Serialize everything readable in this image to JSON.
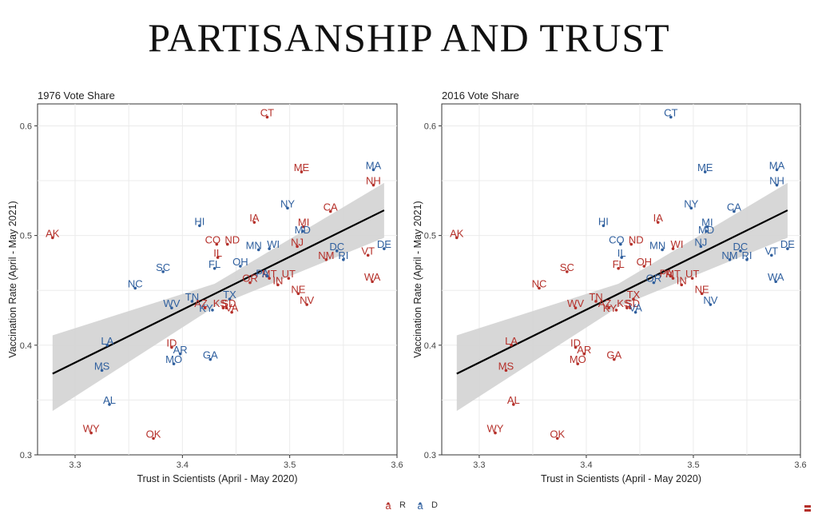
{
  "title": "PARTISANSHIP AND TRUST",
  "colors": {
    "R": "#b5302a",
    "D": "#2f5f9e",
    "ribbon": "#d3d3d3",
    "line": "#000000",
    "grid": "#ebebeb"
  },
  "legend": {
    "glyph": "a",
    "items": [
      {
        "party": "R",
        "label": "R"
      },
      {
        "party": "D",
        "label": "D"
      }
    ]
  },
  "states": [
    {
      "abbr": "CT",
      "trust": 3.479,
      "vax": 0.608,
      "p1976": "R",
      "p2016": "D"
    },
    {
      "abbr": "ME",
      "trust": 3.511,
      "vax": 0.558,
      "p1976": "R",
      "p2016": "D"
    },
    {
      "abbr": "MA",
      "trust": 3.578,
      "vax": 0.56,
      "p1976": "D",
      "p2016": "D"
    },
    {
      "abbr": "NH",
      "trust": 3.578,
      "vax": 0.546,
      "p1976": "R",
      "p2016": "D"
    },
    {
      "abbr": "NY",
      "trust": 3.498,
      "vax": 0.525,
      "p1976": "D",
      "p2016": "D"
    },
    {
      "abbr": "CA",
      "trust": 3.538,
      "vax": 0.522,
      "p1976": "R",
      "p2016": "D"
    },
    {
      "abbr": "HI",
      "trust": 3.416,
      "vax": 0.509,
      "p1976": "D",
      "p2016": "D"
    },
    {
      "abbr": "IA",
      "trust": 3.467,
      "vax": 0.512,
      "p1976": "R",
      "p2016": "R"
    },
    {
      "abbr": "MI",
      "trust": 3.513,
      "vax": 0.508,
      "p1976": "R",
      "p2016": "D"
    },
    {
      "abbr": "MD",
      "trust": 3.512,
      "vax": 0.504,
      "p1976": "D",
      "p2016": "D"
    },
    {
      "abbr": "AK",
      "trust": 3.279,
      "vax": 0.498,
      "p1976": "R",
      "p2016": "R"
    },
    {
      "abbr": "CO",
      "trust": 3.432,
      "vax": 0.492,
      "p1976": "R",
      "p2016": "D"
    },
    {
      "abbr": "ND",
      "trust": 3.442,
      "vax": 0.492,
      "p1976": "R",
      "p2016": "R"
    },
    {
      "abbr": "MN",
      "trust": 3.471,
      "vax": 0.487,
      "p1976": "D",
      "p2016": "D"
    },
    {
      "abbr": "WI",
      "trust": 3.481,
      "vax": 0.488,
      "p1976": "D",
      "p2016": "R"
    },
    {
      "abbr": "NJ",
      "trust": 3.507,
      "vax": 0.49,
      "p1976": "R",
      "p2016": "D"
    },
    {
      "abbr": "DC",
      "trust": 3.544,
      "vax": 0.486,
      "p1976": "D",
      "p2016": "D"
    },
    {
      "abbr": "DE",
      "trust": 3.588,
      "vax": 0.488,
      "p1976": "D",
      "p2016": "D"
    },
    {
      "abbr": "IL",
      "trust": 3.433,
      "vax": 0.48,
      "p1976": "R",
      "p2016": "D"
    },
    {
      "abbr": "VT",
      "trust": 3.573,
      "vax": 0.482,
      "p1976": "R",
      "p2016": "D"
    },
    {
      "abbr": "NM",
      "trust": 3.534,
      "vax": 0.478,
      "p1976": "R",
      "p2016": "D"
    },
    {
      "abbr": "RI",
      "trust": 3.55,
      "vax": 0.478,
      "p1976": "D",
      "p2016": "D"
    },
    {
      "abbr": "FL",
      "trust": 3.43,
      "vax": 0.47,
      "p1976": "D",
      "p2016": "R"
    },
    {
      "abbr": "SC",
      "trust": 3.382,
      "vax": 0.467,
      "p1976": "D",
      "p2016": "R"
    },
    {
      "abbr": "OH",
      "trust": 3.454,
      "vax": 0.472,
      "p1976": "D",
      "p2016": "R"
    },
    {
      "abbr": "MT",
      "trust": 3.481,
      "vax": 0.461,
      "p1976": "R",
      "p2016": "R"
    },
    {
      "abbr": "UT",
      "trust": 3.499,
      "vax": 0.461,
      "p1976": "R",
      "p2016": "R"
    },
    {
      "abbr": "PA",
      "trust": 3.479,
      "vax": 0.463,
      "p1976": "D",
      "p2016": "R"
    },
    {
      "abbr": "OR",
      "trust": 3.463,
      "vax": 0.457,
      "p1976": "R",
      "p2016": "D"
    },
    {
      "abbr": "IN",
      "trust": 3.489,
      "vax": 0.455,
      "p1976": "R",
      "p2016": "R"
    },
    {
      "abbr": "WA",
      "trust": 3.577,
      "vax": 0.458,
      "p1976": "R",
      "p2016": "D"
    },
    {
      "abbr": "NC",
      "trust": 3.356,
      "vax": 0.452,
      "p1976": "D",
      "p2016": "R"
    },
    {
      "abbr": "NE",
      "trust": 3.508,
      "vax": 0.447,
      "p1976": "R",
      "p2016": "R"
    },
    {
      "abbr": "TN",
      "trust": 3.409,
      "vax": 0.44,
      "p1976": "D",
      "p2016": "R"
    },
    {
      "abbr": "TX",
      "trust": 3.444,
      "vax": 0.442,
      "p1976": "D",
      "p2016": "R"
    },
    {
      "abbr": "NV",
      "trust": 3.516,
      "vax": 0.437,
      "p1976": "R",
      "p2016": "D"
    },
    {
      "abbr": "WV",
      "trust": 3.39,
      "vax": 0.434,
      "p1976": "D",
      "p2016": "R"
    },
    {
      "abbr": "AZ",
      "trust": 3.421,
      "vax": 0.434,
      "p1976": "R",
      "p2016": "R"
    },
    {
      "abbr": "KS",
      "trust": 3.438,
      "vax": 0.434,
      "p1976": "R",
      "p2016": "R"
    },
    {
      "abbr": "SD",
      "trust": 3.441,
      "vax": 0.434,
      "p1976": "R",
      "p2016": "R"
    },
    {
      "abbr": "VA",
      "trust": 3.446,
      "vax": 0.43,
      "p1976": "R",
      "p2016": "D"
    },
    {
      "abbr": "KY",
      "trust": 3.428,
      "vax": 0.432,
      "p1976": "D",
      "p2016": "R"
    },
    {
      "abbr": "LA",
      "trust": 3.33,
      "vax": 0.4,
      "p1976": "D",
      "p2016": "R"
    },
    {
      "abbr": "ID",
      "trust": 3.39,
      "vax": 0.398,
      "p1976": "R",
      "p2016": "R"
    },
    {
      "abbr": "AR",
      "trust": 3.398,
      "vax": 0.392,
      "p1976": "D",
      "p2016": "R"
    },
    {
      "abbr": "MO",
      "trust": 3.392,
      "vax": 0.383,
      "p1976": "D",
      "p2016": "R"
    },
    {
      "abbr": "GA",
      "trust": 3.426,
      "vax": 0.387,
      "p1976": "D",
      "p2016": "R"
    },
    {
      "abbr": "MS",
      "trust": 3.325,
      "vax": 0.377,
      "p1976": "D",
      "p2016": "R"
    },
    {
      "abbr": "AL",
      "trust": 3.332,
      "vax": 0.346,
      "p1976": "D",
      "p2016": "R"
    },
    {
      "abbr": "WY",
      "trust": 3.315,
      "vax": 0.32,
      "p1976": "R",
      "p2016": "R"
    },
    {
      "abbr": "OK",
      "trust": 3.373,
      "vax": 0.315,
      "p1976": "R",
      "p2016": "R"
    }
  ],
  "chart_data": [
    {
      "type": "scatter",
      "title": "1976 Vote Share",
      "party_key": "p1976",
      "xlabel": "Trust in Scientists (April - May 2020)",
      "ylabel": "Vaccination Rate (April - May 2021)",
      "xlim": [
        3.265,
        3.6
      ],
      "ylim": [
        0.3,
        0.62
      ],
      "xticks": [
        "3.3",
        "3.4",
        "3.5",
        "3.6"
      ],
      "yticks": [
        "0.3",
        "0.4",
        "0.5",
        "0.6"
      ],
      "grid": true,
      "fit": {
        "x": [
          3.279,
          3.588
        ],
        "y": [
          0.374,
          0.523
        ]
      },
      "ci": {
        "x": [
          3.279,
          3.43,
          3.588
        ],
        "lower": [
          0.34,
          0.435,
          0.498
        ],
        "upper": [
          0.409,
          0.456,
          0.548
        ]
      }
    },
    {
      "type": "scatter",
      "title": "2016 Vote Share",
      "party_key": "p2016",
      "xlabel": "Trust in Scientists (April - May 2020)",
      "ylabel": "Vaccination Rate (April - May 2021)",
      "xlim": [
        3.265,
        3.6
      ],
      "ylim": [
        0.3,
        0.62
      ],
      "xticks": [
        "3.3",
        "3.4",
        "3.5",
        "3.6"
      ],
      "yticks": [
        "0.3",
        "0.4",
        "0.5",
        "0.6"
      ],
      "grid": true,
      "fit": {
        "x": [
          3.279,
          3.588
        ],
        "y": [
          0.374,
          0.523
        ]
      },
      "ci": {
        "x": [
          3.279,
          3.43,
          3.588
        ],
        "lower": [
          0.34,
          0.435,
          0.498
        ],
        "upper": [
          0.409,
          0.456,
          0.548
        ]
      }
    }
  ]
}
